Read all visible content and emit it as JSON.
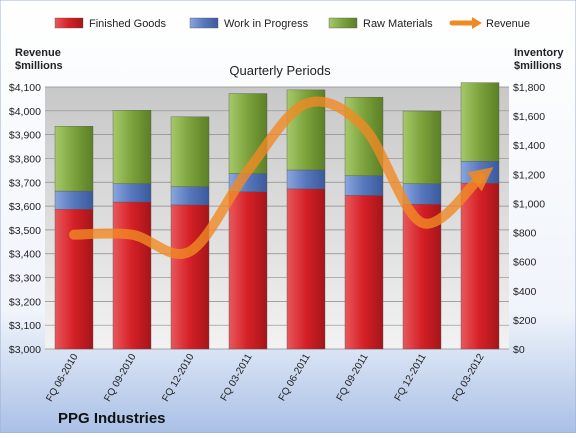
{
  "chart_data": {
    "type": "bar",
    "stacked": true,
    "title": "Quarterly Periods",
    "footer": "PPG Industries",
    "ylabel_left": [
      "Revenue",
      "$millions"
    ],
    "ylabel_right": [
      "Inventory",
      "$millions"
    ],
    "categories": [
      "FQ 06-2010",
      "FQ 09-2010",
      "FQ 12-2010",
      "FQ 03-2011",
      "FQ 06-2011",
      "FQ 09-2011",
      "FQ 12-2011",
      "FQ 03-2012"
    ],
    "series": [
      {
        "name": "Finished Goods",
        "axis": "right",
        "color": "#d9262b",
        "values": [
          960,
          1010,
          990,
          1080,
          1100,
          1055,
          995,
          1140
        ]
      },
      {
        "name": "Work in Progress",
        "axis": "right",
        "color": "#5b7fc4",
        "values": [
          125,
          125,
          125,
          125,
          130,
          135,
          140,
          150
        ]
      },
      {
        "name": "Raw Materials",
        "axis": "right",
        "color": "#7ea63f",
        "values": [
          445,
          505,
          480,
          550,
          550,
          540,
          500,
          540
        ]
      },
      {
        "name": "Revenue",
        "axis": "left",
        "type": "line",
        "color": "#f08a24",
        "values": [
          3480,
          3480,
          3410,
          3750,
          4030,
          3930,
          3530,
          3720
        ]
      }
    ],
    "left_axis": {
      "min": 3000,
      "max": 4100,
      "ticks": [
        "$3,000",
        "$3,100",
        "$3,200",
        "$3,300",
        "$3,400",
        "$3,500",
        "$3,600",
        "$3,700",
        "$3,800",
        "$3,900",
        "$4,000",
        "$4,100"
      ]
    },
    "right_axis": {
      "min": 0,
      "max": 1800,
      "ticks": [
        "$0",
        "$200",
        "$400",
        "$600",
        "$800",
        "$1,000",
        "$1,200",
        "$1,400",
        "$1,600",
        "$1,800"
      ]
    },
    "legend_position": "top",
    "grid": true
  }
}
